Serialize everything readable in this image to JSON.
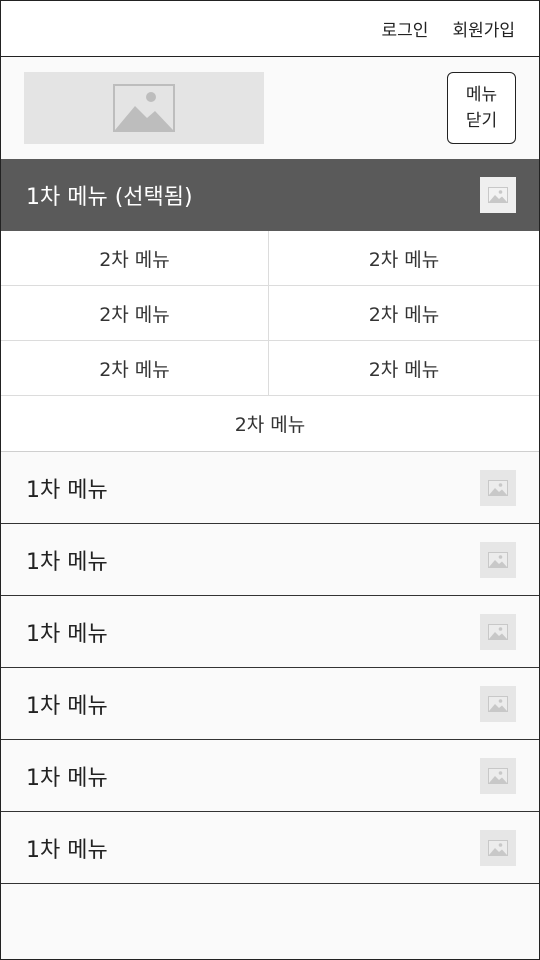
{
  "top_links": {
    "login": "로그인",
    "signup": "회원가입"
  },
  "header": {
    "close_line1": "메뉴",
    "close_line2": "닫기",
    "logo_icon": "image-placeholder-icon"
  },
  "selected_menu": {
    "label": "1차 메뉴 (선택됨)"
  },
  "submenu": [
    "2차 메뉴",
    "2차 메뉴",
    "2차 메뉴",
    "2차 메뉴",
    "2차 메뉴",
    "2차 메뉴",
    "2차 메뉴"
  ],
  "menus": [
    {
      "label": "1차 메뉴"
    },
    {
      "label": "1차 메뉴"
    },
    {
      "label": "1차 메뉴"
    },
    {
      "label": "1차 메뉴"
    },
    {
      "label": "1차 메뉴"
    },
    {
      "label": "1차 메뉴"
    }
  ]
}
